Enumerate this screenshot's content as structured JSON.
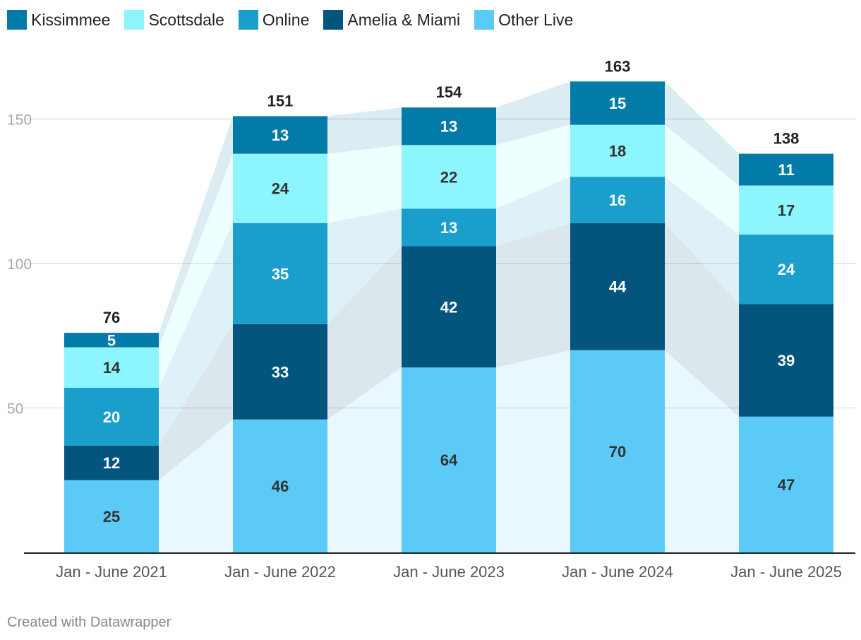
{
  "chart_data": {
    "type": "bar",
    "stacked": true,
    "categories": [
      "Jan - June 2021",
      "Jan - June 2022",
      "Jan - June 2023",
      "Jan - June 2024",
      "Jan - June 2025"
    ],
    "series": [
      {
        "name": "Other Live",
        "color": "#5bcaf6",
        "label_color": "#333333",
        "values": [
          25,
          46,
          64,
          70,
          47
        ]
      },
      {
        "name": "Amelia & Miami",
        "color": "#04557e",
        "label_color": "#ffffff",
        "values": [
          12,
          33,
          42,
          44,
          39
        ]
      },
      {
        "name": "Online",
        "color": "#1a9fcd",
        "label_color": "#ffffff",
        "values": [
          20,
          35,
          13,
          16,
          24
        ]
      },
      {
        "name": "Scottsdale",
        "color": "#8cf5fd",
        "label_color": "#333333",
        "values": [
          14,
          24,
          22,
          18,
          17
        ]
      },
      {
        "name": "Kissimmee",
        "color": "#037ba8",
        "label_color": "#ffffff",
        "values": [
          5,
          13,
          13,
          15,
          11
        ]
      }
    ],
    "totals": [
      76,
      151,
      154,
      163,
      138
    ],
    "yticks": [
      50,
      100,
      150
    ],
    "ylim": [
      0,
      175
    ],
    "grid": true,
    "legend_position": "top-left"
  },
  "legend": [
    {
      "label": "Kissimmee",
      "color": "#037ba8"
    },
    {
      "label": "Scottsdale",
      "color": "#8cf5fd"
    },
    {
      "label": "Online",
      "color": "#1a9fcd"
    },
    {
      "label": "Amelia & Miami",
      "color": "#04557e"
    },
    {
      "label": "Other Live",
      "color": "#5bcaf6"
    }
  ],
  "footer": {
    "credit": "Created with Datawrapper"
  }
}
